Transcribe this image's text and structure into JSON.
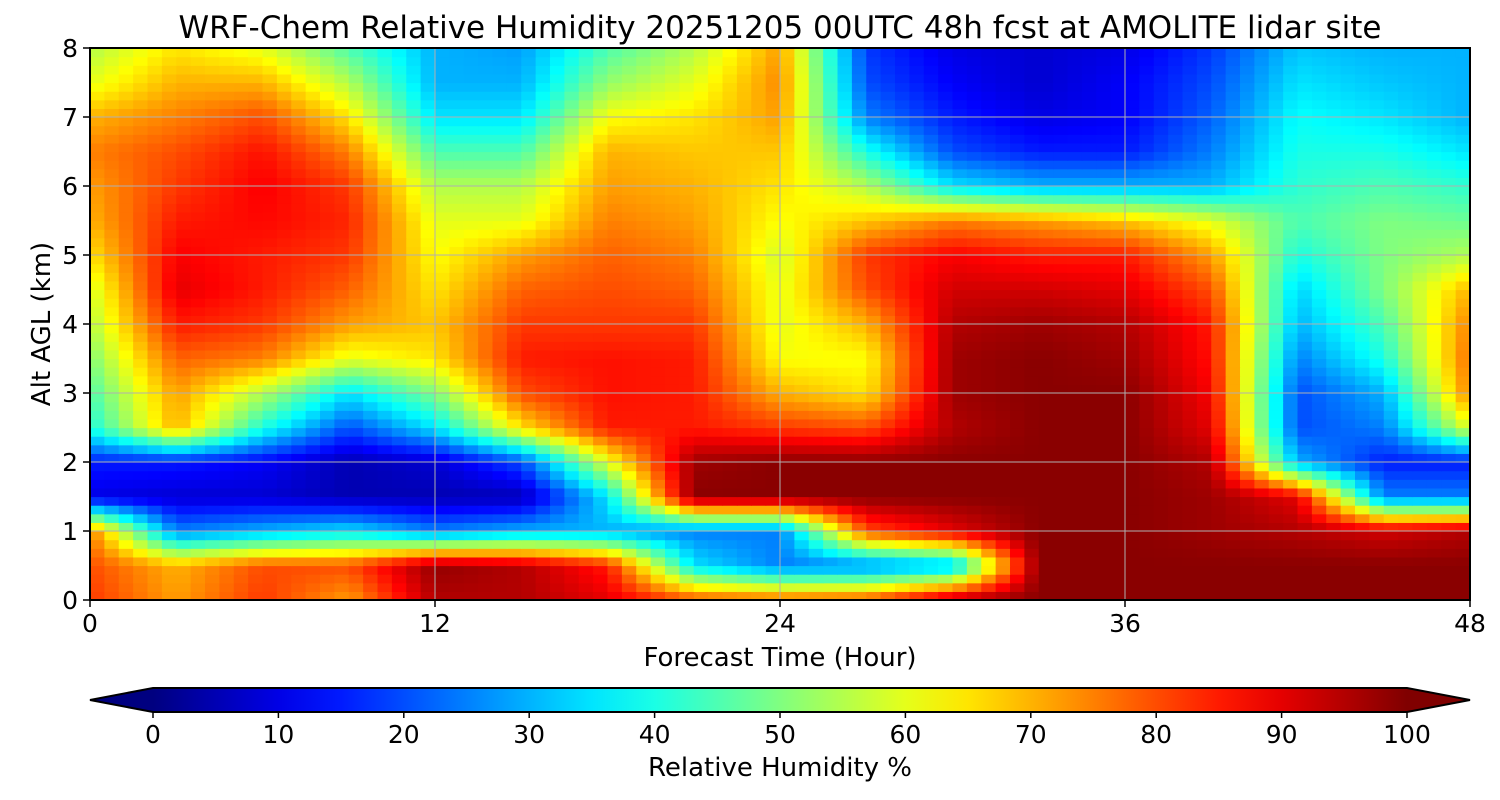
{
  "chart_data": {
    "type": "heatmap",
    "title": "WRF-Chem Relative Humidity 20251205 00UTC 48h fcst at AMOLITE lidar site",
    "xlabel": "Forecast Time (Hour)",
    "ylabel": "Alt AGL (km)",
    "xlim": [
      0,
      48
    ],
    "ylim": [
      0,
      8
    ],
    "xticks": [
      "0",
      "12",
      "24",
      "36",
      "48"
    ],
    "yticks": [
      "0",
      "1",
      "2",
      "3",
      "4",
      "5",
      "6",
      "7",
      "8"
    ],
    "grid": true,
    "colormap": "jet",
    "colorbar": {
      "label": "Relative Humidity %",
      "range": [
        0,
        100
      ],
      "ticks": [
        "0",
        "10",
        "20",
        "30",
        "40",
        "50",
        "60",
        "70",
        "80",
        "90",
        "100"
      ],
      "extend": "both",
      "orientation": "horizontal"
    },
    "x": [
      0,
      3,
      6,
      9,
      12,
      15,
      18,
      21,
      24,
      27,
      30,
      33,
      36,
      39,
      42,
      45,
      48
    ],
    "y": [
      0,
      0.5,
      1,
      1.5,
      2,
      2.5,
      3,
      3.5,
      4,
      4.5,
      5,
      5.5,
      6,
      6.5,
      7,
      7.5,
      8
    ],
    "z": [
      [
        82,
        72,
        82,
        72,
        95,
        95,
        90,
        80,
        78,
        80,
        96,
        99,
        99,
        99,
        99,
        99,
        99
      ],
      [
        80,
        70,
        80,
        80,
        98,
        95,
        85,
        35,
        25,
        25,
        30,
        99,
        99,
        99,
        99,
        99,
        99
      ],
      [
        75,
        25,
        30,
        35,
        25,
        30,
        30,
        25,
        25,
        80,
        90,
        99,
        99,
        97,
        95,
        92,
        95
      ],
      [
        10,
        8,
        8,
        5,
        5,
        5,
        35,
        99,
        99,
        99,
        99,
        99,
        99,
        97,
        90,
        25,
        25
      ],
      [
        15,
        15,
        12,
        5,
        8,
        20,
        60,
        97,
        99,
        99,
        99,
        99,
        99,
        95,
        30,
        15,
        15
      ],
      [
        40,
        70,
        40,
        20,
        35,
        65,
        85,
        85,
        82,
        80,
        95,
        99,
        99,
        90,
        20,
        25,
        60
      ],
      [
        45,
        72,
        55,
        35,
        50,
        80,
        86,
        85,
        70,
        65,
        97,
        99,
        99,
        88,
        20,
        30,
        75
      ],
      [
        50,
        78,
        75,
        60,
        65,
        85,
        86,
        85,
        62,
        62,
        97,
        99,
        97,
        86,
        25,
        40,
        77
      ],
      [
        55,
        85,
        82,
        72,
        68,
        82,
        82,
        82,
        60,
        70,
        95,
        97,
        95,
        85,
        30,
        45,
        75
      ],
      [
        58,
        90,
        85,
        78,
        65,
        78,
        80,
        78,
        60,
        80,
        92,
        92,
        90,
        80,
        33,
        50,
        70
      ],
      [
        65,
        88,
        85,
        82,
        62,
        72,
        78,
        75,
        58,
        82,
        88,
        85,
        85,
        72,
        40,
        50,
        55
      ],
      [
        70,
        85,
        87,
        84,
        60,
        60,
        75,
        72,
        62,
        68,
        75,
        72,
        68,
        60,
        45,
        50,
        48
      ],
      [
        72,
        82,
        88,
        82,
        55,
        55,
        72,
        70,
        65,
        55,
        35,
        30,
        30,
        30,
        42,
        45,
        42
      ],
      [
        75,
        80,
        86,
        75,
        45,
        45,
        70,
        68,
        68,
        40,
        20,
        15,
        15,
        25,
        40,
        40,
        35
      ],
      [
        70,
        75,
        80,
        65,
        35,
        35,
        62,
        65,
        72,
        25,
        15,
        10,
        12,
        22,
        38,
        35,
        30
      ],
      [
        60,
        70,
        70,
        55,
        30,
        30,
        52,
        60,
        74,
        20,
        12,
        8,
        12,
        20,
        35,
        32,
        30
      ],
      [
        55,
        65,
        60,
        45,
        30,
        28,
        45,
        55,
        72,
        18,
        10,
        8,
        10,
        18,
        32,
        30,
        30
      ]
    ]
  }
}
